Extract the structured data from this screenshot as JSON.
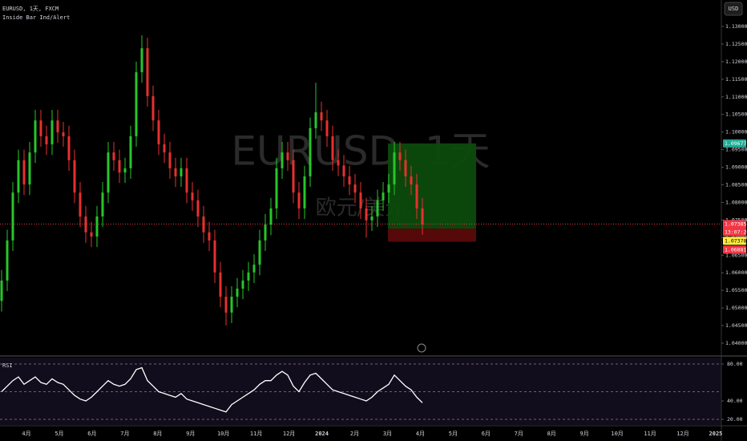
{
  "chart_data": {
    "type": "candlestick",
    "symbol_title": "EURUSD, 1天, FXCM",
    "indicator_title": "Inside Bar Ind/Alert",
    "currency_button": "USD",
    "watermark": {
      "symbol": "EURUSD, 1天",
      "name": "欧元/美元"
    },
    "up_color": "#26c62a",
    "down_color": "#e8302f",
    "open": [
      1.052,
      1.0578,
      1.0692,
      1.0828,
      1.092,
      1.0851,
      1.0942,
      1.1033,
      1.0988,
      1.0965,
      1.1033,
      1.0999,
      1.0988,
      1.092,
      1.0828,
      1.076,
      1.0715,
      1.0703,
      1.076,
      1.0828,
      1.0942,
      1.092,
      1.0885,
      1.0897,
      1.0988,
      1.117,
      1.1238,
      1.1102,
      1.1033,
      1.0965,
      1.0942,
      1.0897,
      1.0874,
      1.0897,
      1.0828,
      1.0806,
      1.076,
      1.0715,
      1.0692,
      1.0601,
      1.0532,
      1.0487,
      1.0532,
      1.0555,
      1.0578,
      1.0601,
      1.0623,
      1.0692,
      1.0737,
      1.0783,
      1.0897,
      1.0942,
      1.092,
      1.0828,
      1.0783,
      1.0874,
      1.1011,
      1.1056,
      1.1033,
      1.0988,
      1.092,
      1.0905,
      1.0874,
      1.0851,
      1.0828,
      1.0783,
      1.0749,
      1.076,
      1.0806,
      1.0828,
      1.0851,
      1.0942,
      1.092,
      1.0874,
      1.0851,
      1.0783
    ],
    "high": [
      1.0608,
      1.0722,
      1.0858,
      1.095,
      1.095,
      1.0972,
      1.1063,
      1.1063,
      1.1018,
      1.1063,
      1.1063,
      1.1029,
      1.1018,
      1.095,
      1.0858,
      1.079,
      1.0745,
      1.079,
      1.0858,
      1.0972,
      1.0972,
      1.095,
      1.0927,
      1.1018,
      1.12,
      1.1275,
      1.1268,
      1.1132,
      1.1063,
      1.0995,
      1.0972,
      1.0927,
      1.0927,
      1.0927,
      1.0858,
      1.0836,
      1.079,
      1.0745,
      1.0722,
      1.0631,
      1.0562,
      1.0562,
      1.0585,
      1.0608,
      1.0631,
      1.0653,
      1.0722,
      1.0767,
      1.0813,
      1.0927,
      1.0972,
      1.0972,
      1.095,
      1.0858,
      1.0904,
      1.1041,
      1.114,
      1.1086,
      1.1063,
      1.1018,
      1.095,
      1.0935,
      1.0904,
      1.0881,
      1.0858,
      1.0813,
      1.079,
      1.0836,
      1.0858,
      1.0881,
      1.0972,
      1.0972,
      1.095,
      1.0904,
      1.0881,
      1.0813
    ],
    "low": [
      1.049,
      1.0548,
      1.0662,
      1.0798,
      1.0821,
      1.0821,
      1.0912,
      1.0958,
      1.0935,
      1.0935,
      1.0969,
      1.0958,
      1.089,
      1.0798,
      1.073,
      1.0685,
      1.0673,
      1.0673,
      1.073,
      1.0798,
      1.089,
      1.0855,
      1.0855,
      1.0867,
      1.0958,
      1.114,
      1.1072,
      1.1003,
      1.0935,
      1.0912,
      1.0867,
      1.0844,
      1.0844,
      1.0798,
      1.0776,
      1.073,
      1.0685,
      1.0662,
      1.0571,
      1.0502,
      1.045,
      1.0457,
      1.0502,
      1.0525,
      1.0548,
      1.0571,
      1.0593,
      1.0662,
      1.0707,
      1.0753,
      1.0867,
      1.089,
      1.0798,
      1.0753,
      1.0753,
      1.0844,
      1.0981,
      1.1003,
      1.0958,
      1.089,
      1.0875,
      1.0844,
      1.0821,
      1.0798,
      1.0753,
      1.07,
      1.0719,
      1.073,
      1.0776,
      1.0798,
      1.0821,
      1.089,
      1.0844,
      1.0821,
      1.0753,
      1.0708
    ],
    "close": [
      1.0578,
      1.0692,
      1.0828,
      1.092,
      1.0851,
      1.0942,
      1.1033,
      1.0988,
      1.0965,
      1.1033,
      1.0999,
      1.0988,
      1.092,
      1.0828,
      1.076,
      1.0715,
      1.0703,
      1.076,
      1.0828,
      1.0942,
      1.092,
      1.0885,
      1.0897,
      1.0988,
      1.117,
      1.1238,
      1.1102,
      1.1033,
      1.0965,
      1.0942,
      1.0897,
      1.0874,
      1.0897,
      1.0828,
      1.0806,
      1.076,
      1.0715,
      1.0692,
      1.0601,
      1.0532,
      1.0487,
      1.0532,
      1.0555,
      1.0578,
      1.0601,
      1.0623,
      1.0692,
      1.0737,
      1.0783,
      1.0897,
      1.0942,
      1.092,
      1.0828,
      1.0783,
      1.0874,
      1.1011,
      1.1056,
      1.1033,
      1.0988,
      1.092,
      1.0905,
      1.0874,
      1.0851,
      1.0828,
      1.0783,
      1.0749,
      1.076,
      1.0806,
      1.0828,
      1.0851,
      1.0942,
      1.092,
      1.0874,
      1.0851,
      1.0783,
      1.0738
    ],
    "ylim": [
      1.03658,
      1.13752
    ],
    "yticks": [
      {
        "value": 1.13,
        "label": "1.13000"
      },
      {
        "value": 1.125,
        "label": "1.12500"
      },
      {
        "value": 1.12,
        "label": "1.12000"
      },
      {
        "value": 1.115,
        "label": "1.11500"
      },
      {
        "value": 1.11,
        "label": "1.11000"
      },
      {
        "value": 1.105,
        "label": "1.10500"
      },
      {
        "value": 1.1,
        "label": "1.10000"
      },
      {
        "value": 1.095,
        "label": "1.09500"
      },
      {
        "value": 1.09,
        "label": "1.09000"
      },
      {
        "value": 1.085,
        "label": "1.08500"
      },
      {
        "value": 1.08,
        "label": "1.08000"
      },
      {
        "value": 1.075,
        "label": "1.07500"
      },
      {
        "value": 1.07,
        "label": "1.07000"
      },
      {
        "value": 1.065,
        "label": "1.06500"
      },
      {
        "value": 1.06,
        "label": "1.06000"
      },
      {
        "value": 1.055,
        "label": "1.05500"
      },
      {
        "value": 1.05,
        "label": "1.05000"
      },
      {
        "value": 1.045,
        "label": "1.04500"
      },
      {
        "value": 1.04,
        "label": "1.04000"
      }
    ],
    "last_price": 1.07385,
    "position": {
      "target": 1.09677,
      "entry": 1.07258,
      "stop": 1.06881
    },
    "price_tags": [
      {
        "value": 1.09677,
        "color": "#22ab94"
      },
      {
        "value": 1.07385,
        "sublabel": "13:07:26",
        "color": "#f23645"
      },
      {
        "value": 1.07378,
        "color": "#ffeb3b"
      },
      {
        "value": 1.06881,
        "color": "#f23645"
      }
    ],
    "x_labels": [
      "4月",
      "5月",
      "6月",
      "7月",
      "8月",
      "9月",
      "10月",
      "11月",
      "12月",
      "2024",
      "2月",
      "3月",
      "4月",
      "5月",
      "6月",
      "7月",
      "8月",
      "9月",
      "10月",
      "11月",
      "12月",
      "2025"
    ],
    "rsi": {
      "title": "RSI",
      "color": "#ffffff",
      "values": [
        50,
        56,
        62,
        66,
        58,
        62,
        66,
        60,
        58,
        64,
        60,
        58,
        52,
        46,
        42,
        40,
        44,
        50,
        56,
        62,
        58,
        56,
        58,
        64,
        74,
        76,
        62,
        56,
        50,
        48,
        46,
        44,
        48,
        42,
        40,
        38,
        36,
        34,
        32,
        30,
        28,
        36,
        40,
        44,
        48,
        52,
        58,
        62,
        62,
        68,
        72,
        68,
        56,
        50,
        60,
        68,
        70,
        64,
        58,
        52,
        50,
        48,
        46,
        44,
        42,
        40,
        44,
        50,
        54,
        58,
        68,
        62,
        56,
        52,
        44,
        38
      ],
      "ylim": [
        13.9,
        86.96
      ],
      "yticks": [
        {
          "value": 80,
          "label": "80.00"
        },
        {
          "value": 40,
          "label": "40.00"
        },
        {
          "value": 20,
          "label": "20.00"
        }
      ],
      "levels": [
        80,
        50,
        20
      ]
    }
  }
}
